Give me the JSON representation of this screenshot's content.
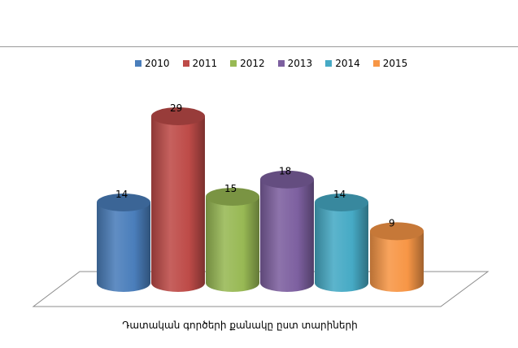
{
  "chart_data": {
    "type": "bar",
    "title": "Դատական գործերի քանակը ըստ տարիների",
    "categories": [
      "2010",
      "2011",
      "2012",
      "2013",
      "2014",
      "2015"
    ],
    "values": [
      14,
      29,
      15,
      18,
      14,
      9
    ],
    "data_labels": [
      "14",
      "29",
      "15",
      "18",
      "14",
      "9"
    ],
    "legend": [
      "2010",
      "2011",
      "2012",
      "2013",
      "2014",
      "2015"
    ],
    "colors": [
      "#4a7ebb",
      "#be4b48",
      "#98b954",
      "#7d60a0",
      "#46aac5",
      "#f79646"
    ],
    "legend_position": "top",
    "grid": false,
    "ylim": [
      0,
      29
    ]
  }
}
